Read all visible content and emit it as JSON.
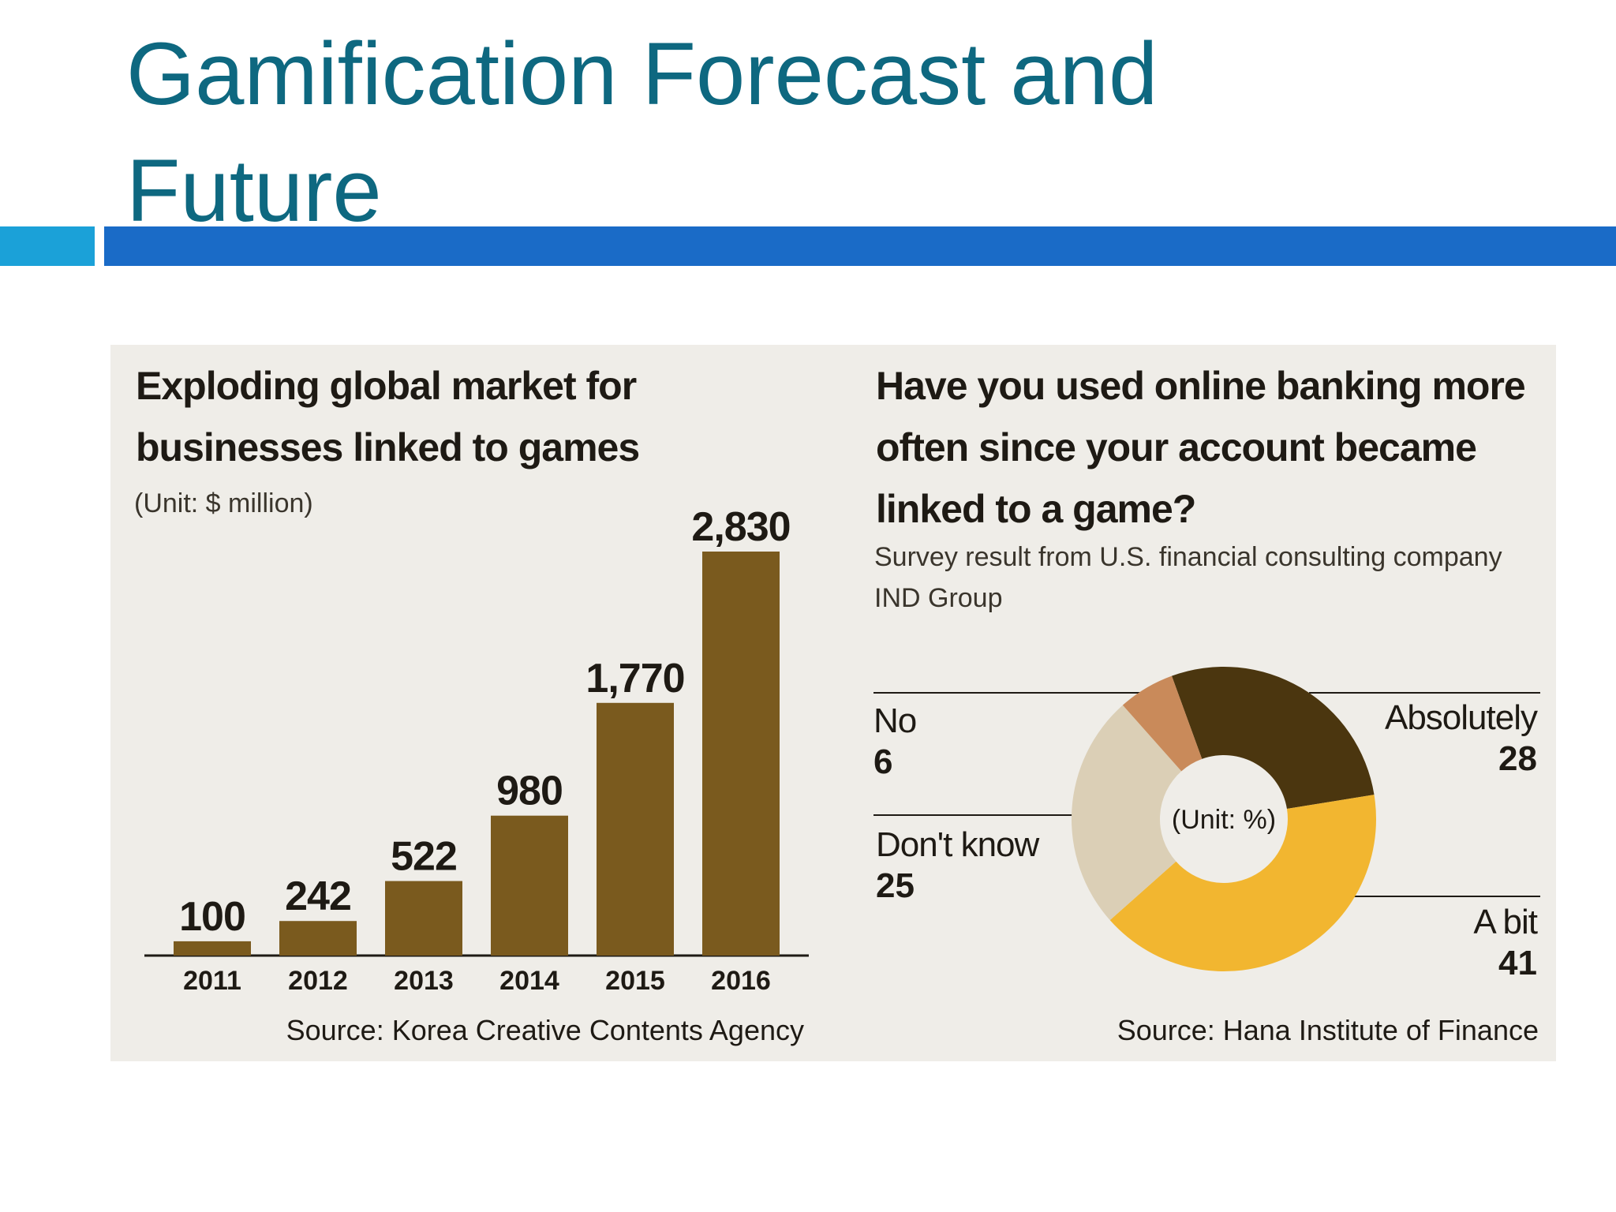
{
  "title": "Gamification Forecast and Future",
  "chart_data": [
    {
      "type": "bar",
      "title": "Exploding global market for businesses linked to games",
      "subtitle": "(Unit: $ million)",
      "categories": [
        "2011",
        "2012",
        "2013",
        "2014",
        "2015",
        "2016"
      ],
      "values": [
        100,
        242,
        522,
        980,
        1770,
        2830
      ],
      "value_labels": [
        "100",
        "242",
        "522",
        "980",
        "1,770",
        "2,830"
      ],
      "color": "#7a5a1e",
      "source": "Source: Korea Creative Contents Agency"
    },
    {
      "type": "pie",
      "title": "Have you used online banking more often since your account became linked to a game?",
      "subtitle": "Survey result from U.S. financial consulting company IND Group",
      "center_label": "(Unit: %)",
      "categories": [
        "Absolutely",
        "A bit",
        "Don't know",
        "No"
      ],
      "values": [
        28,
        41,
        25,
        6
      ],
      "colors": [
        "#4b360f",
        "#f2b630",
        "#dbcfb6",
        "#c98a5a"
      ],
      "source": "Source: Hana Institute of Finance"
    }
  ]
}
